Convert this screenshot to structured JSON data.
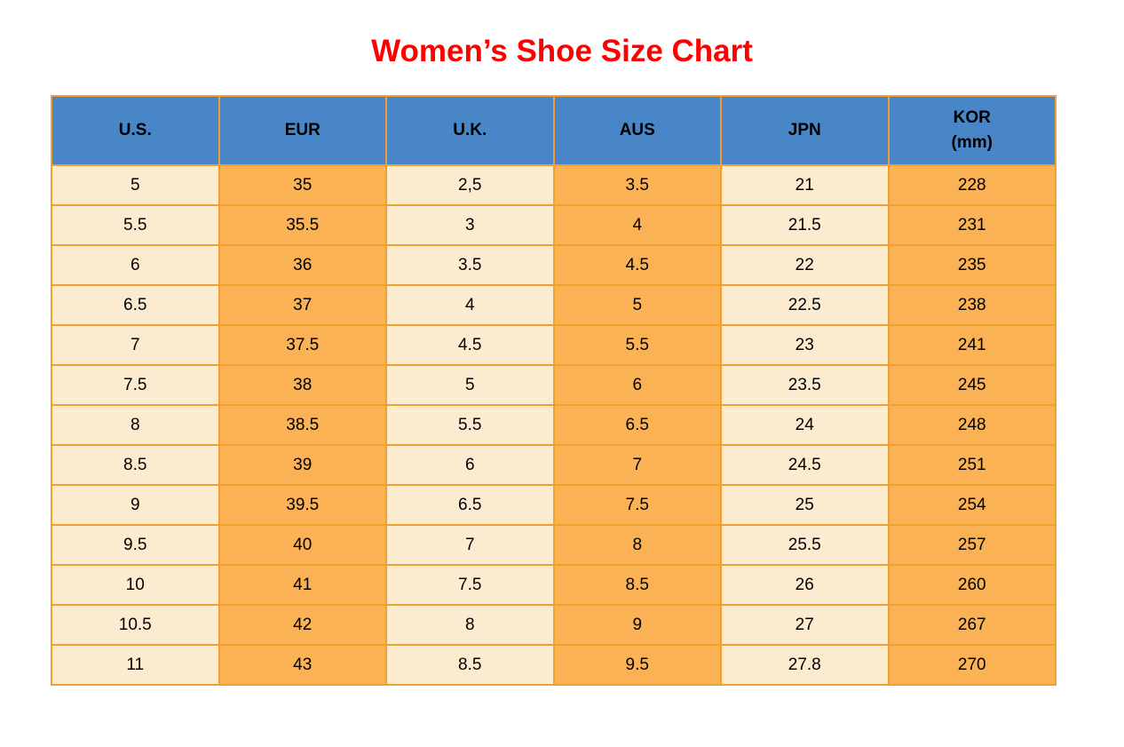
{
  "title": "Women’s Shoe Size Chart",
  "chart_data": {
    "type": "table",
    "title": "Women’s Shoe Size Chart",
    "columns": [
      {
        "key": "us",
        "label": "U.S."
      },
      {
        "key": "eur",
        "label": "EUR"
      },
      {
        "key": "uk",
        "label": "U.K."
      },
      {
        "key": "aus",
        "label": "AUS"
      },
      {
        "key": "jpn",
        "label": "JPN"
      },
      {
        "key": "kor",
        "label": "KOR",
        "sublabel": "(mm)"
      }
    ],
    "rows": [
      [
        "5",
        "35",
        "2,5",
        "3.5",
        "21",
        "228"
      ],
      [
        "5.5",
        "35.5",
        "3",
        "4",
        "21.5",
        "231"
      ],
      [
        "6",
        "36",
        "3.5",
        "4.5",
        "22",
        "235"
      ],
      [
        "6.5",
        "37",
        "4",
        "5",
        "22.5",
        "238"
      ],
      [
        "7",
        "37.5",
        "4.5",
        "5.5",
        "23",
        "241"
      ],
      [
        "7.5",
        "38",
        "5",
        "6",
        "23.5",
        "245"
      ],
      [
        "8",
        "38.5",
        "5.5",
        "6.5",
        "24",
        "248"
      ],
      [
        "8.5",
        "39",
        "6",
        "7",
        "24.5",
        "251"
      ],
      [
        "9",
        "39.5",
        "6.5",
        "7.5",
        "25",
        "254"
      ],
      [
        "9.5",
        "40",
        "7",
        "8",
        "25.5",
        "257"
      ],
      [
        "10",
        "41",
        "7.5",
        "8.5",
        "26",
        "260"
      ],
      [
        "10.5",
        "42",
        "8",
        "9",
        "27",
        "267"
      ],
      [
        "11",
        "43",
        "8.5",
        "9.5",
        "27.8",
        "270"
      ]
    ]
  },
  "table_style": {
    "column_fills": [
      "cream",
      "orange",
      "cream",
      "orange",
      "cream",
      "orange"
    ]
  },
  "colors": {
    "title_red": "#FF0000",
    "header_blue": "#4886C7",
    "cell_cream": "#FDEBCF",
    "cell_orange": "#FBB254",
    "border_orange": "#F0A02E",
    "text_black": "#000000"
  }
}
